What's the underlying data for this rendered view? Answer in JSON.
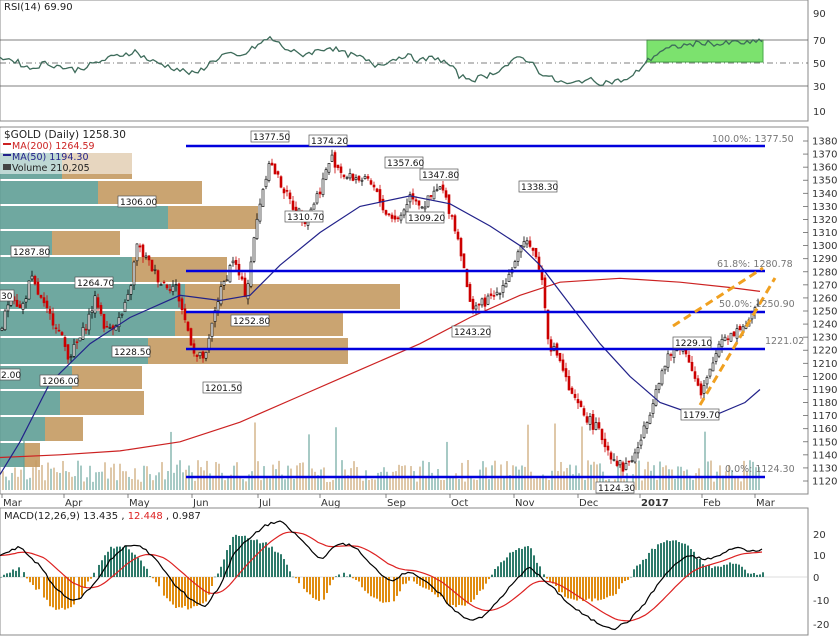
{
  "colors": {
    "price_up": "#000000",
    "price_down": "#cc0000",
    "ma200": "#cc2222",
    "ma50": "#22228a",
    "blue_levels": "#0000dd",
    "vbp_up": "#5f9e96",
    "vbp_down": "#c49a62",
    "wedge": "#f0a020",
    "rsi_line": "#3d6b5a",
    "rsi_highlight": "#33cc33",
    "macd_line": "#000000",
    "signal_line": "#dd2222",
    "hist_pos": "#2e7a6a",
    "hist_neg": "#e08c10"
  },
  "rsi_panel": {
    "title": "RSI(14) 69.90",
    "levels": [
      "70",
      "50",
      "30"
    ]
  },
  "price_panel": {
    "title": "$GOLD (Daily) 1258.30",
    "legend": [
      {
        "text": "MA(200) 1264.59",
        "color": "#cc2222"
      },
      {
        "text": "MA(50) 1194.30",
        "color": "#22228a"
      },
      {
        "text": "Volume 210,205",
        "color": "#444444"
      }
    ],
    "fib_labels": {
      "top": "100.0%: 1377.50",
      "f618": "61.8%: 1280.78",
      "f50": "50.0%: 1250.90",
      "r1221": "1221.02",
      "bottom": "0.0%: 1124.30"
    },
    "y_ticks": [
      "1380",
      "1370",
      "1360",
      "1350",
      "1340",
      "1330",
      "1320",
      "1310",
      "1300",
      "1290",
      "1280",
      "1270",
      "1260",
      "1250",
      "1240",
      "1230",
      "1220",
      "1210",
      "1200",
      "1190",
      "1180",
      "1170",
      "1160",
      "1150",
      "1140",
      "1130",
      "1120"
    ],
    "price_labels": [
      "1377.50",
      "1374.20",
      "1357.60",
      "1347.80",
      "1338.30",
      "1310.70",
      "1309.20",
      "1306.00",
      "1287.80",
      "1264.70",
      "1252.80",
      "1243.20",
      "1229.10",
      "1228.50",
      "1221.02",
      "1206.00",
      "1201.50",
      "1179.70",
      "1124.30",
      "1250.90",
      "30",
      "2.00"
    ],
    "months": [
      "Mar",
      "Apr",
      "May",
      "Jun",
      "Jul",
      "Aug",
      "Sep",
      "Oct",
      "Nov",
      "Dec",
      "2017",
      "Feb",
      "Mar"
    ]
  },
  "macd_panel": {
    "title_name": "MACD(12,26,9)",
    "macd_value": "13.435",
    "signal_value": "12.448",
    "hist_value": "0.987",
    "y_ticks": [
      "20",
      "10",
      "0",
      "-10",
      "-20"
    ]
  },
  "chart_data": [
    {
      "type": "line",
      "title": "RSI(14) 69.90",
      "ylim": [
        10,
        90
      ],
      "gridlines": [
        70,
        50,
        30
      ]
    },
    {
      "type": "candlestick",
      "title": "$GOLD (Daily) 1258.30",
      "ylim": [
        1115,
        1385
      ],
      "series": [
        {
          "name": "MA(200)",
          "last": 1264.59
        },
        {
          "name": "MA(50)",
          "last": 1194.3
        },
        {
          "name": "Volume",
          "last": 210205
        }
      ],
      "close_path": [
        {
          "x": "Mar",
          "y": 1235
        },
        {
          "x": "Mar",
          "y": 1265
        },
        {
          "x": "Mar",
          "y": 1250
        },
        {
          "x": "Mar",
          "y": 1275
        },
        {
          "x": "Apr",
          "y": 1240
        },
        {
          "x": "Apr",
          "y": 1215
        },
        {
          "x": "Apr",
          "y": 1245
        },
        {
          "x": "Apr",
          "y": 1265
        },
        {
          "x": "Apr",
          "y": 1235
        },
        {
          "x": "May",
          "y": 1250
        },
        {
          "x": "May",
          "y": 1300
        },
        {
          "x": "May",
          "y": 1285
        },
        {
          "x": "May",
          "y": 1270
        },
        {
          "x": "May",
          "y": 1262
        },
        {
          "x": "Jun",
          "y": 1240
        },
        {
          "x": "Jun",
          "y": 1215
        },
        {
          "x": "Jun",
          "y": 1210
        },
        {
          "x": "Jun",
          "y": 1250
        },
        {
          "x": "Jun",
          "y": 1285
        },
        {
          "x": "Jun",
          "y": 1260
        },
        {
          "x": "Jul",
          "y": 1320
        },
        {
          "x": "Jul",
          "y": 1365
        },
        {
          "x": "Jul",
          "y": 1355
        },
        {
          "x": "Jul",
          "y": 1340
        },
        {
          "x": "Jul",
          "y": 1320
        },
        {
          "x": "Aug",
          "y": 1340
        },
        {
          "x": "Aug",
          "y": 1365
        },
        {
          "x": "Aug",
          "y": 1352
        },
        {
          "x": "Aug",
          "y": 1345
        },
        {
          "x": "Sep",
          "y": 1350
        },
        {
          "x": "Sep",
          "y": 1325
        },
        {
          "x": "Sep",
          "y": 1318
        },
        {
          "x": "Sep",
          "y": 1340
        },
        {
          "x": "Sep",
          "y": 1325
        },
        {
          "x": "Oct",
          "y": 1315
        },
        {
          "x": "Oct",
          "y": 1260
        },
        {
          "x": "Oct",
          "y": 1255
        },
        {
          "x": "Oct",
          "y": 1265
        },
        {
          "x": "Nov",
          "y": 1275
        },
        {
          "x": "Nov",
          "y": 1305
        },
        {
          "x": "Nov",
          "y": 1280
        },
        {
          "x": "Nov",
          "y": 1225
        },
        {
          "x": "Nov",
          "y": 1210
        },
        {
          "x": "Dec",
          "y": 1175
        },
        {
          "x": "Dec",
          "y": 1165
        },
        {
          "x": "Dec",
          "y": 1148
        },
        {
          "x": "Dec",
          "y": 1128
        },
        {
          "x": "2017",
          "y": 1140
        },
        {
          "x": "2017",
          "y": 1170
        },
        {
          "x": "2017",
          "y": 1195
        },
        {
          "x": "2017",
          "y": 1220
        },
        {
          "x": "Feb",
          "y": 1210
        },
        {
          "x": "Feb",
          "y": 1190
        },
        {
          "x": "Feb",
          "y": 1225
        },
        {
          "x": "Feb",
          "y": 1240
        },
        {
          "x": "Feb",
          "y": 1235
        },
        {
          "x": "Mar",
          "y": 1258
        }
      ],
      "levels": [
        1377.5,
        1280.78,
        1250.9,
        1221.02,
        1124.3
      ]
    },
    {
      "type": "line",
      "title": "MACD(12,26,9) 13.435, 12.448, 0.987",
      "ylim": [
        -25,
        28
      ],
      "series": [
        {
          "name": "MACD",
          "last": 13.435
        },
        {
          "name": "Signal",
          "last": 12.448
        },
        {
          "name": "Histogram",
          "last": 0.987
        }
      ]
    }
  ]
}
